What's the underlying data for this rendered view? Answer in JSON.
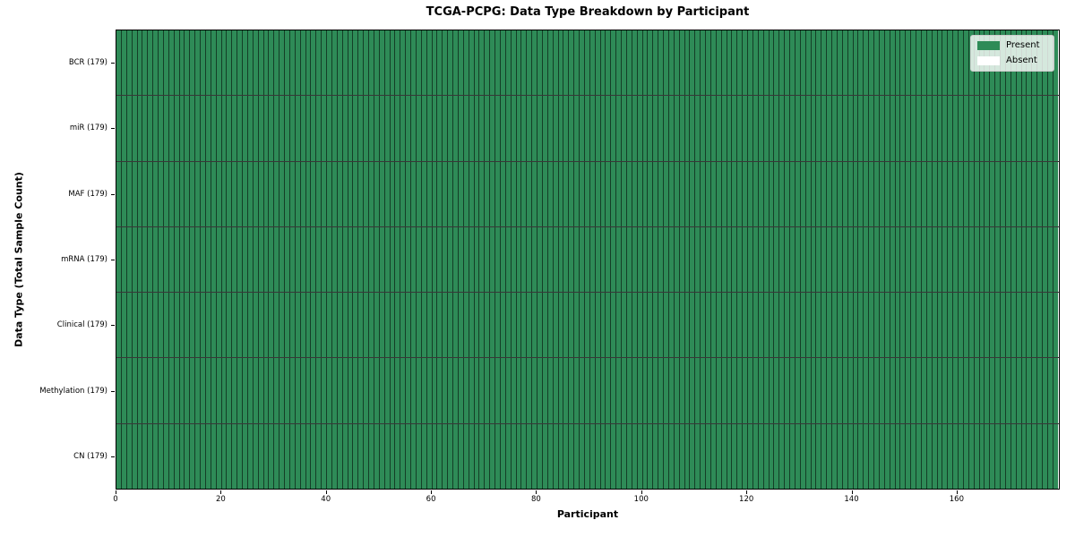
{
  "chart_data": {
    "type": "heatmap",
    "title": "TCGA-PCPG: Data Type Breakdown by Participant",
    "xlabel": "Participant",
    "ylabel": "Data Type (Total Sample Count)",
    "n_participants": 179,
    "x_range": [
      0,
      179
    ],
    "x_ticks": [
      0,
      20,
      40,
      60,
      80,
      100,
      120,
      140,
      160
    ],
    "rows": [
      {
        "label": "BCR (179)",
        "data_type": "BCR",
        "total_samples": 179,
        "present": 179,
        "absent": 0
      },
      {
        "label": "miR (179)",
        "data_type": "miR",
        "total_samples": 179,
        "present": 179,
        "absent": 0
      },
      {
        "label": "MAF (179)",
        "data_type": "MAF",
        "total_samples": 179,
        "present": 179,
        "absent": 0
      },
      {
        "label": "mRNA (179)",
        "data_type": "mRNA",
        "total_samples": 179,
        "present": 179,
        "absent": 0
      },
      {
        "label": "Clinical (179)",
        "data_type": "Clinical",
        "total_samples": 179,
        "present": 179,
        "absent": 0
      },
      {
        "label": "Methylation (179)",
        "data_type": "Methylation",
        "total_samples": 179,
        "present": 179,
        "absent": 0
      },
      {
        "label": "CN (179)",
        "data_type": "CN",
        "total_samples": 179,
        "present": 179,
        "absent": 0
      }
    ],
    "colors": {
      "present": "#2e8b57",
      "absent": "#ffffff"
    },
    "legend": {
      "position": "upper right",
      "items": [
        {
          "label": "Present",
          "color": "#2e8b57"
        },
        {
          "label": "Absent",
          "color": "#ffffff"
        }
      ]
    },
    "grid": false
  }
}
